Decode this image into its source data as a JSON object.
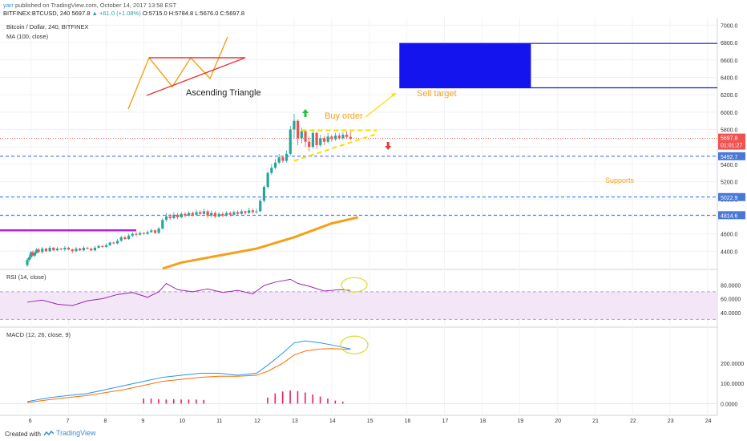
{
  "header": {
    "user": "yarr",
    "published": "published on TradingView.com, October 14, 2017 13:58 ESТ",
    "symbol": "BITFINEX:BTCUSD, 240",
    "last": "5697.8",
    "change": "▲ +61.0 (+1.08%)",
    "ohlc": "O:5715.0 H:5784.8 L:5676.0 C:5697.8"
  },
  "footer": {
    "created": "Created with",
    "brand": "TradingView"
  },
  "colors": {
    "up": "#26a69a",
    "down": "#ef5350",
    "ma": "#f6a01a",
    "rsi": "#9c27b0",
    "macd": "#2196f3",
    "signal": "#ff6d00",
    "hist": "#e91e63",
    "level": "#2962ff"
  },
  "chart_data": {
    "type": "candlestick",
    "title": "Bitcoin / Dollar, 240, BITFINEX",
    "indicator_label": "MA (100, close)",
    "x_ticks": [
      "6",
      "7",
      "8",
      "9",
      "10",
      "11",
      "12",
      "13",
      "14",
      "15",
      "16",
      "17",
      "18",
      "19",
      "20",
      "21",
      "22",
      "23",
      "24"
    ],
    "price_ticks": [
      4400,
      4600,
      4800,
      5000,
      5200,
      5400,
      5600,
      5800,
      6000,
      6200,
      6400,
      6600,
      6800,
      7000
    ],
    "ylim": [
      4200,
      7050
    ],
    "candles": [
      [
        5.9,
        4240,
        4300,
        4220,
        4320
      ],
      [
        5.95,
        4300,
        4330,
        4280,
        4360
      ],
      [
        6.0,
        4330,
        4390,
        4310,
        4400
      ],
      [
        6.05,
        4390,
        4350,
        4340,
        4410
      ],
      [
        6.1,
        4350,
        4380,
        4330,
        4400
      ],
      [
        6.15,
        4380,
        4420,
        4370,
        4440
      ],
      [
        6.2,
        4420,
        4390,
        4380,
        4440
      ],
      [
        6.3,
        4390,
        4430,
        4370,
        4450
      ],
      [
        6.4,
        4430,
        4400,
        4390,
        4440
      ],
      [
        6.5,
        4400,
        4440,
        4390,
        4460
      ],
      [
        6.6,
        4440,
        4410,
        4400,
        4450
      ],
      [
        6.7,
        4410,
        4430,
        4400,
        4450
      ],
      [
        6.8,
        4430,
        4420,
        4410,
        4440
      ],
      [
        6.9,
        4420,
        4440,
        4400,
        4460
      ],
      [
        7.0,
        4440,
        4420,
        4410,
        4450
      ],
      [
        7.1,
        4420,
        4400,
        4380,
        4430
      ],
      [
        7.2,
        4400,
        4430,
        4390,
        4450
      ],
      [
        7.3,
        4430,
        4410,
        4400,
        4440
      ],
      [
        7.4,
        4410,
        4440,
        4400,
        4460
      ],
      [
        7.5,
        4440,
        4430,
        4420,
        4450
      ],
      [
        7.6,
        4430,
        4410,
        4400,
        4440
      ],
      [
        7.7,
        4410,
        4440,
        4400,
        4460
      ],
      [
        7.8,
        4440,
        4460,
        4430,
        4480
      ],
      [
        7.9,
        4460,
        4450,
        4440,
        4470
      ],
      [
        8.0,
        4450,
        4470,
        4440,
        4490
      ],
      [
        8.1,
        4470,
        4500,
        4460,
        4510
      ],
      [
        8.2,
        4500,
        4490,
        4480,
        4510
      ],
      [
        8.3,
        4490,
        4520,
        4480,
        4540
      ],
      [
        8.4,
        4520,
        4560,
        4510,
        4580
      ],
      [
        8.5,
        4560,
        4540,
        4530,
        4580
      ],
      [
        8.6,
        4540,
        4580,
        4530,
        4600
      ],
      [
        8.7,
        4580,
        4600,
        4560,
        4620
      ],
      [
        8.8,
        4600,
        4590,
        4570,
        4620
      ],
      [
        8.9,
        4590,
        4610,
        4580,
        4630
      ],
      [
        9.0,
        4610,
        4600,
        4590,
        4620
      ],
      [
        9.1,
        4600,
        4620,
        4590,
        4640
      ],
      [
        9.2,
        4620,
        4640,
        4610,
        4660
      ],
      [
        9.3,
        4640,
        4610,
        4600,
        4650
      ],
      [
        9.4,
        4610,
        4660,
        4600,
        4680
      ],
      [
        9.5,
        4660,
        4760,
        4650,
        4780
      ],
      [
        9.6,
        4760,
        4800,
        4740,
        4840
      ],
      [
        9.7,
        4800,
        4780,
        4760,
        4830
      ],
      [
        9.8,
        4780,
        4820,
        4770,
        4850
      ],
      [
        9.9,
        4820,
        4790,
        4770,
        4840
      ],
      [
        10.0,
        4790,
        4830,
        4780,
        4850
      ],
      [
        10.1,
        4830,
        4810,
        4790,
        4850
      ],
      [
        10.2,
        4810,
        4840,
        4800,
        4860
      ],
      [
        10.3,
        4840,
        4820,
        4800,
        4860
      ],
      [
        10.4,
        4820,
        4850,
        4810,
        4880
      ],
      [
        10.5,
        4850,
        4830,
        4810,
        4870
      ],
      [
        10.6,
        4830,
        4860,
        4820,
        4890
      ],
      [
        10.7,
        4860,
        4810,
        4780,
        4880
      ],
      [
        10.8,
        4810,
        4840,
        4790,
        4870
      ],
      [
        10.9,
        4840,
        4800,
        4780,
        4860
      ],
      [
        11.0,
        4800,
        4830,
        4790,
        4850
      ],
      [
        11.1,
        4830,
        4810,
        4790,
        4850
      ],
      [
        11.2,
        4810,
        4840,
        4800,
        4860
      ],
      [
        11.3,
        4840,
        4820,
        4800,
        4860
      ],
      [
        11.4,
        4820,
        4850,
        4810,
        4870
      ],
      [
        11.5,
        4850,
        4830,
        4810,
        4870
      ],
      [
        11.6,
        4830,
        4860,
        4820,
        4880
      ],
      [
        11.7,
        4860,
        4840,
        4820,
        4870
      ],
      [
        11.8,
        4840,
        4870,
        4830,
        4900
      ],
      [
        11.9,
        4870,
        4850,
        4830,
        4890
      ],
      [
        12.0,
        4850,
        4860,
        4830,
        4890
      ],
      [
        12.1,
        4860,
        4980,
        4850,
        5000
      ],
      [
        12.2,
        4980,
        5140,
        4960,
        5160
      ],
      [
        12.3,
        5140,
        5300,
        5120,
        5320
      ],
      [
        12.4,
        5300,
        5360,
        5280,
        5400
      ],
      [
        12.5,
        5360,
        5420,
        5340,
        5460
      ],
      [
        12.6,
        5420,
        5480,
        5400,
        5520
      ],
      [
        12.7,
        5480,
        5440,
        5420,
        5500
      ],
      [
        12.8,
        5440,
        5520,
        5420,
        5560
      ],
      [
        12.9,
        5520,
        5800,
        5500,
        5840
      ],
      [
        13.0,
        5800,
        5900,
        5700,
        5980
      ],
      [
        13.1,
        5900,
        5700,
        5620,
        5920
      ],
      [
        13.2,
        5700,
        5780,
        5640,
        5820
      ],
      [
        13.3,
        5780,
        5660,
        5600,
        5800
      ],
      [
        13.4,
        5660,
        5600,
        5550,
        5720
      ],
      [
        13.5,
        5600,
        5760,
        5580,
        5790
      ],
      [
        13.6,
        5760,
        5620,
        5580,
        5780
      ],
      [
        13.7,
        5620,
        5700,
        5600,
        5740
      ],
      [
        13.8,
        5700,
        5660,
        5620,
        5730
      ],
      [
        13.9,
        5660,
        5720,
        5640,
        5760
      ],
      [
        14.0,
        5720,
        5690,
        5660,
        5740
      ],
      [
        14.1,
        5690,
        5730,
        5670,
        5760
      ],
      [
        14.2,
        5730,
        5700,
        5680,
        5760
      ],
      [
        14.3,
        5700,
        5740,
        5680,
        5770
      ],
      [
        14.4,
        5740,
        5715,
        5690,
        5780
      ],
      [
        14.5,
        5715,
        5698,
        5676,
        5785
      ]
    ],
    "ma100": [
      [
        9.5,
        4200
      ],
      [
        10,
        4270
      ],
      [
        11,
        4350
      ],
      [
        12,
        4430
      ],
      [
        13,
        4560
      ],
      [
        14,
        4720
      ],
      [
        14.7,
        4790
      ]
    ],
    "levels": [
      {
        "price": 5492.7,
        "label": "5492.7"
      },
      {
        "price": 5022.9,
        "label": "5022.9"
      },
      {
        "price": 4814.6,
        "label": "4814.6"
      }
    ],
    "last_price_label": "5697.8",
    "countdown_label": "01:01:27",
    "annotations": {
      "pattern": "Ascending Triangle",
      "buy": "Buy order",
      "sell": "Sell target",
      "supports": "Supports"
    },
    "sell_zone": [
      6280,
      6790
    ],
    "magenta_level": 4640,
    "rsi": {
      "label": "RSI (14, close)",
      "ticks": [
        40,
        60,
        80
      ],
      "band": [
        30,
        70
      ],
      "values": [
        [
          5.9,
          55
        ],
        [
          6.3,
          58
        ],
        [
          6.7,
          52
        ],
        [
          7.1,
          50
        ],
        [
          7.5,
          57
        ],
        [
          7.9,
          60
        ],
        [
          8.3,
          66
        ],
        [
          8.7,
          69
        ],
        [
          9.1,
          62
        ],
        [
          9.4,
          70
        ],
        [
          9.6,
          82
        ],
        [
          9.9,
          73
        ],
        [
          10.3,
          70
        ],
        [
          10.7,
          74
        ],
        [
          11.1,
          69
        ],
        [
          11.5,
          72
        ],
        [
          11.9,
          67
        ],
        [
          12.2,
          79
        ],
        [
          12.5,
          84
        ],
        [
          12.9,
          88
        ],
        [
          13.1,
          82
        ],
        [
          13.4,
          78
        ],
        [
          13.8,
          71
        ],
        [
          14.2,
          73
        ],
        [
          14.5,
          72
        ]
      ]
    },
    "macd": {
      "label": "MACD (12, 26, close, 9)",
      "ticks": [
        "0.0000",
        "100.0000",
        "200.0000"
      ],
      "macd_line": [
        [
          5.9,
          10
        ],
        [
          6.5,
          30
        ],
        [
          7.0,
          40
        ],
        [
          7.5,
          50
        ],
        [
          8.0,
          70
        ],
        [
          8.5,
          90
        ],
        [
          9.0,
          110
        ],
        [
          9.5,
          130
        ],
        [
          10.0,
          140
        ],
        [
          10.5,
          150
        ],
        [
          11.0,
          150
        ],
        [
          11.5,
          140
        ],
        [
          12.0,
          150
        ],
        [
          12.3,
          190
        ],
        [
          12.7,
          250
        ],
        [
          13.0,
          300
        ],
        [
          13.3,
          310
        ],
        [
          13.7,
          300
        ],
        [
          14.0,
          290
        ],
        [
          14.5,
          270
        ]
      ],
      "signal_line": [
        [
          5.9,
          5
        ],
        [
          6.5,
          20
        ],
        [
          7.0,
          30
        ],
        [
          7.5,
          40
        ],
        [
          8.0,
          55
        ],
        [
          8.5,
          70
        ],
        [
          9.0,
          90
        ],
        [
          9.5,
          110
        ],
        [
          10.0,
          120
        ],
        [
          10.5,
          130
        ],
        [
          11.0,
          135
        ],
        [
          11.5,
          135
        ],
        [
          12.0,
          140
        ],
        [
          12.3,
          160
        ],
        [
          12.7,
          200
        ],
        [
          13.0,
          240
        ],
        [
          13.3,
          260
        ],
        [
          13.7,
          270
        ],
        [
          14.0,
          272
        ],
        [
          14.5,
          268
        ]
      ],
      "hist": [
        [
          9.0,
          25
        ],
        [
          9.2,
          25
        ],
        [
          9.4,
          22
        ],
        [
          9.6,
          20
        ],
        [
          9.8,
          22
        ],
        [
          10.0,
          20
        ],
        [
          10.2,
          20
        ],
        [
          10.4,
          20
        ],
        [
          10.6,
          18
        ],
        [
          12.3,
          30
        ],
        [
          12.5,
          50
        ],
        [
          12.7,
          60
        ],
        [
          12.9,
          65
        ],
        [
          13.1,
          62
        ],
        [
          13.3,
          55
        ],
        [
          13.5,
          45
        ],
        [
          13.7,
          35
        ],
        [
          13.9,
          25
        ],
        [
          14.1,
          15
        ],
        [
          14.3,
          10
        ]
      ]
    }
  }
}
